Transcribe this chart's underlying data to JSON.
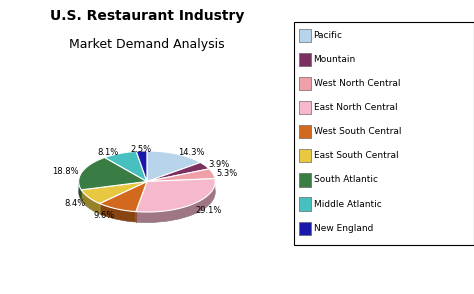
{
  "title_line1": "U.S. Restaurant Industry",
  "title_line2": "Market Demand Analysis",
  "labels": [
    "Pacific",
    "Mountain",
    "West North Central",
    "East North Central",
    "West South Central",
    "East South Central",
    "South Atlantic",
    "Middle Atlantic",
    "New England"
  ],
  "values": [
    14.3,
    3.9,
    5.3,
    29.1,
    9.6,
    8.4,
    18.8,
    8.1,
    2.5
  ],
  "colors": [
    "#b8d4e8",
    "#7b3b6e",
    "#e8a0a8",
    "#f0b8c8",
    "#d2691e",
    "#e8c840",
    "#3a7d44",
    "#48c0c0",
    "#1a1aaa"
  ],
  "pct_labels": [
    "14.3%",
    "3.9%",
    "5.3%",
    "29.1%",
    "9.6%",
    "8.4%",
    "18.8%",
    "8.1%",
    "2.5%"
  ],
  "background_color": "#ffffff",
  "legend_labels": [
    "Pacific",
    "Mountain",
    "West North Central",
    "East North Central",
    "West South Central",
    "East South Central",
    "South Atlantic",
    "Middle Atlantic",
    "New England"
  ]
}
